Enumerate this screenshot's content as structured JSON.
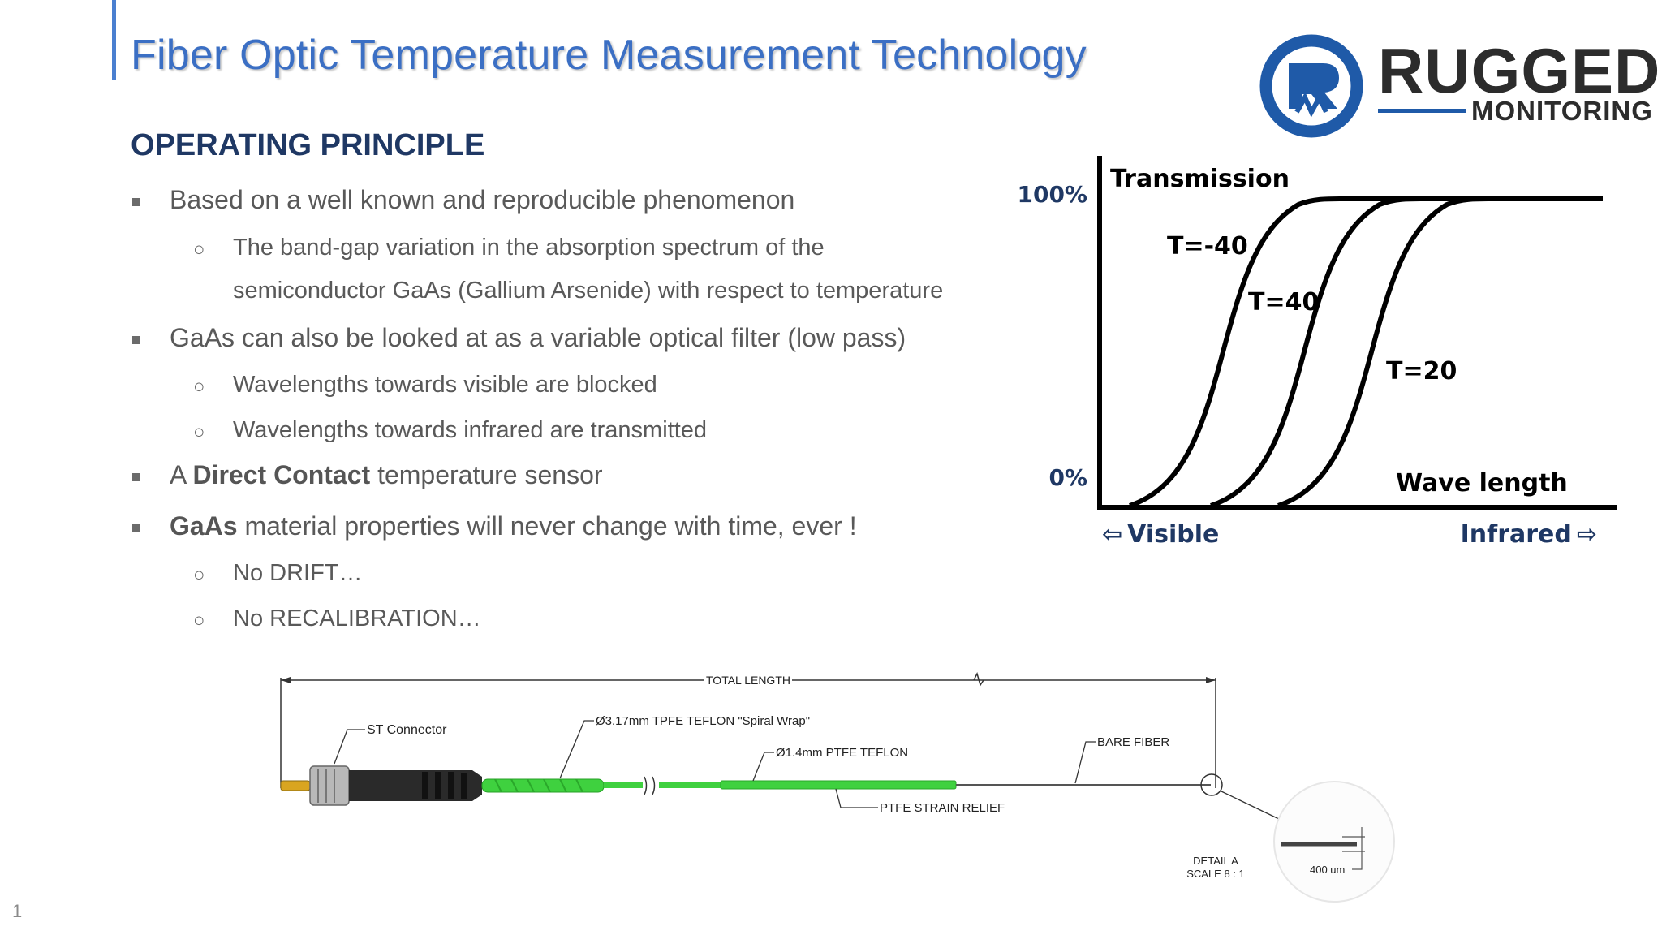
{
  "slide": {
    "title": "Fiber Optic Temperature Measurement Technology",
    "page_number": "1"
  },
  "logo": {
    "name": "RUGGED",
    "sub": "MONITORING",
    "colors": {
      "ring": "#1f5aa8",
      "text": "#2c2c2c"
    }
  },
  "section": {
    "heading": "OPERATING PRINCIPLE"
  },
  "bullets": {
    "b1": {
      "text": "Based on a well known and reproducible phenomenon"
    },
    "b1_sub": [
      "The band-gap variation in the absorption spectrum of the",
      "semiconductor GaAs (Gallium Arsenide) with respect to temperature"
    ],
    "b2": {
      "text": "GaAs can also be looked at as a variable optical filter (low pass)"
    },
    "b2_sub": [
      "Wavelengths towards visible are blocked",
      "Wavelengths towards infrared are transmitted"
    ],
    "b3": {
      "pre": "A ",
      "bold": "Direct Contact",
      "post": " temperature sensor"
    },
    "b4": {
      "bold": "GaAs",
      "post": " material properties will never change with time, ever !"
    },
    "b4_sub": [
      "No DRIFT…",
      "No RECALIBRATION…"
    ]
  },
  "chart_data": {
    "type": "line",
    "ylabel": "Transmission",
    "xlabel": "Wave length",
    "y_ticks": [
      "100%",
      "0%"
    ],
    "ylim": [
      0,
      100
    ],
    "x_left_label": "Visible",
    "x_right_label": "Infrared",
    "x_arrows": {
      "left": "⇦",
      "right": "⇨"
    },
    "series": [
      {
        "name": "T=-40"
      },
      {
        "name": "T=40"
      },
      {
        "name": "T=20"
      }
    ],
    "colors": {
      "curve": "#000000",
      "tick_label": "#1f3864",
      "x_label": "#1f3864"
    }
  },
  "drawing": {
    "total_length": "TOTAL LENGTH",
    "st_connector": "ST Connector",
    "spiral_wrap": "Ø3.17mm TPFE TEFLON \"Spiral Wrap\"",
    "ptfe_teflon": "Ø1.4mm PTFE TEFLON",
    "bare_fiber": "BARE FIBER",
    "strain_relief": "PTFE STRAIN RELIEF",
    "detail_line1": "DETAIL A",
    "detail_line2": "SCALE 8 : 1",
    "detail_size": "400 um",
    "colors": {
      "jacket": "#3fd13f",
      "connector": "#2a2a2a",
      "ferrule": "#d9a520"
    }
  }
}
